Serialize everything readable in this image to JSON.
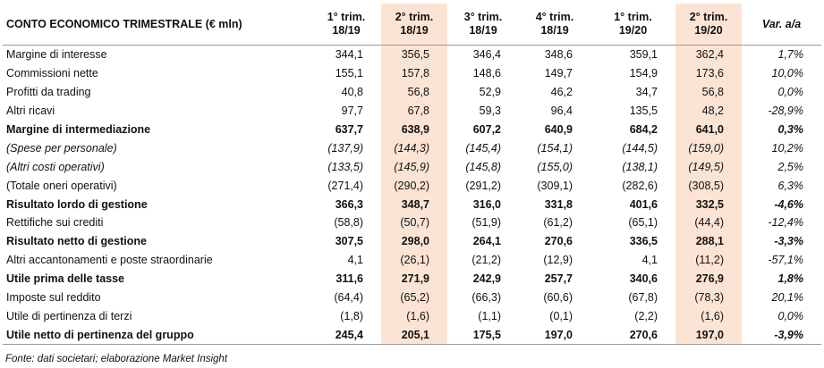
{
  "table": {
    "title": "CONTO ECONOMICO TRIMESTRALE (€ mln)",
    "columns": [
      [
        "1° trim.",
        "18/19"
      ],
      [
        "2° trim.",
        "18/19"
      ],
      [
        "3° trim.",
        "18/19"
      ],
      [
        "4° trim.",
        "18/19"
      ],
      [
        "1° trim.",
        "19/20"
      ],
      [
        "2° trim.",
        "19/20"
      ],
      [
        "Var. a/a"
      ]
    ],
    "rows": [
      {
        "label": "Margine di interesse",
        "values": [
          "344,1",
          "356,5",
          "346,4",
          "348,6",
          "359,1",
          "362,4",
          "1,7%"
        ]
      },
      {
        "label": "Commissioni nette",
        "values": [
          "155,1",
          "157,8",
          "148,6",
          "149,7",
          "154,9",
          "173,6",
          "10,0%"
        ]
      },
      {
        "label": "Profitti da trading",
        "values": [
          "40,8",
          "56,8",
          "52,9",
          "46,2",
          "34,7",
          "56,8",
          "0,0%"
        ]
      },
      {
        "label": "Altri ricavi",
        "values": [
          "97,7",
          "67,8",
          "59,3",
          "96,4",
          "135,5",
          "48,2",
          "-28,9%"
        ]
      },
      {
        "label": "Margine di intermediazione",
        "values": [
          "637,7",
          "638,9",
          "607,2",
          "640,9",
          "684,2",
          "641,0",
          "0,3%"
        ]
      },
      {
        "label": "(Spese per personale)",
        "values": [
          "(137,9)",
          "(144,3)",
          "(145,4)",
          "(154,1)",
          "(144,5)",
          "(159,0)",
          "10,2%"
        ]
      },
      {
        "label": "(Altri costi operativi)",
        "values": [
          "(133,5)",
          "(145,9)",
          "(145,8)",
          "(155,0)",
          "(138,1)",
          "(149,5)",
          "2,5%"
        ]
      },
      {
        "label": "(Totale oneri operativi)",
        "values": [
          "(271,4)",
          "(290,2)",
          "(291,2)",
          "(309,1)",
          "(282,6)",
          "(308,5)",
          "6,3%"
        ]
      },
      {
        "label": "Risultato lordo di gestione",
        "values": [
          "366,3",
          "348,7",
          "316,0",
          "331,8",
          "401,6",
          "332,5",
          "-4,6%"
        ]
      },
      {
        "label": "Rettifiche sui crediti",
        "values": [
          "(58,8)",
          "(50,7)",
          "(51,9)",
          "(61,2)",
          "(65,1)",
          "(44,4)",
          "-12,4%"
        ]
      },
      {
        "label": "Risultato netto di gestione",
        "values": [
          "307,5",
          "298,0",
          "264,1",
          "270,6",
          "336,5",
          "288,1",
          "-3,3%"
        ]
      },
      {
        "label": "Altri accantonamenti e poste straordinarie",
        "values": [
          "4,1",
          "(26,1)",
          "(21,2)",
          "(12,9)",
          "4,1",
          "(11,2)",
          "-57,1%"
        ]
      },
      {
        "label": "Utile prima delle tasse",
        "values": [
          "311,6",
          "271,9",
          "242,9",
          "257,7",
          "340,6",
          "276,9",
          "1,8%"
        ]
      },
      {
        "label": "Imposte sul reddito",
        "values": [
          "(64,4)",
          "(65,2)",
          "(66,3)",
          "(60,6)",
          "(67,8)",
          "(78,3)",
          "20,1%"
        ]
      },
      {
        "label": "Utile di pertinenza di terzi",
        "values": [
          "(1,8)",
          "(1,6)",
          "(1,1)",
          "(0,1)",
          "(2,2)",
          "(1,6)",
          "0,0%"
        ]
      },
      {
        "label": "Utile netto di pertinenza del gruppo",
        "values": [
          "245,4",
          "205,1",
          "175,5",
          "197,0",
          "270,6",
          "197,0",
          "-3,9%"
        ]
      }
    ],
    "source": "Fonte: dati societari; elaborazione Market Insight"
  }
}
